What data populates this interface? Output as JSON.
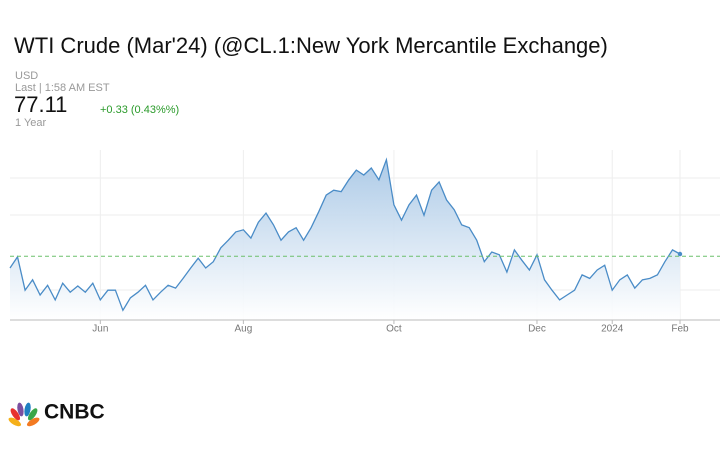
{
  "title": "WTI Crude (Mar'24) (@CL.1:New York Mercantile Exchange)",
  "currency": "USD",
  "last_label": "Last | 1:58 AM EST",
  "last_price": "77.11",
  "change": "+0.33 (0.43%%)",
  "period": "1 Year",
  "logo_text": "CNBC",
  "chart_data": {
    "type": "area",
    "watermark": "CNBC",
    "categories": [
      null,
      null,
      null,
      null,
      null,
      null,
      null,
      null,
      null,
      null,
      null,
      null,
      "Jun",
      null,
      null,
      null,
      null,
      null,
      null,
      null,
      null,
      null,
      null,
      null,
      null,
      null,
      null,
      null,
      null,
      null,
      null,
      "Aug",
      null,
      null,
      null,
      null,
      null,
      null,
      null,
      null,
      null,
      null,
      null,
      null,
      null,
      null,
      null,
      null,
      null,
      null,
      null,
      "Oct",
      null,
      null,
      null,
      null,
      null,
      null,
      null,
      null,
      null,
      null,
      null,
      null,
      null,
      null,
      null,
      null,
      null,
      null,
      "Dec",
      null,
      null,
      null,
      null,
      null,
      null,
      null,
      null,
      null,
      "2024",
      null,
      null,
      null,
      null,
      null,
      null,
      null,
      null,
      "Feb"
    ],
    "values": [
      75.1,
      76.7,
      71.9,
      73.4,
      71.2,
      72.6,
      70.5,
      72.9,
      71.6,
      72.5,
      71.6,
      72.9,
      70.5,
      71.9,
      71.9,
      69.0,
      70.8,
      71.6,
      72.6,
      70.5,
      71.6,
      72.6,
      72.2,
      73.6,
      75.1,
      76.5,
      75.1,
      76.0,
      78.0,
      79.1,
      80.3,
      80.6,
      79.4,
      81.7,
      83.0,
      81.3,
      79.1,
      80.3,
      80.9,
      79.1,
      80.9,
      83.2,
      85.6,
      86.3,
      86.1,
      87.8,
      89.2,
      88.5,
      89.5,
      87.8,
      90.7,
      84.2,
      82.0,
      84.2,
      85.6,
      82.7,
      86.3,
      87.5,
      84.9,
      83.5,
      81.3,
      80.9,
      79.1,
      76.0,
      77.4,
      77.0,
      74.5,
      77.7,
      76.2,
      74.8,
      77.0,
      73.4,
      71.9,
      70.5,
      71.2,
      71.9,
      74.1,
      73.6,
      74.8,
      75.5,
      71.9,
      73.4,
      74.1,
      72.2,
      73.4,
      73.6,
      74.1,
      76.0,
      77.7,
      77.11
    ],
    "previous_close": 76.78,
    "ylim": [
      67.6,
      92.1
    ],
    "line_color": "#4a8cc7",
    "fill_color": "#a9c8e6",
    "reference_color": "#6cc06c"
  }
}
